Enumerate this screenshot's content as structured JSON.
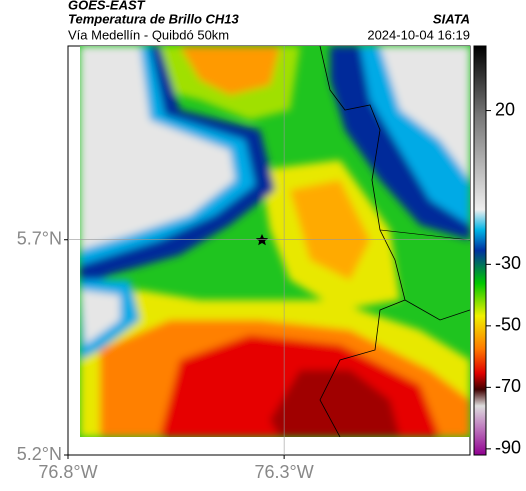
{
  "header": {
    "title": "GOES-EAST",
    "subtitle": "Temperatura de Brillo CH13",
    "source": "SIATA",
    "route": "Vía Medellín - Quibdó 50km",
    "timestamp": "2024-10-04 16:19"
  },
  "map": {
    "xlim": [
      -76.8,
      -75.87
    ],
    "ylim": [
      5.2,
      6.15
    ],
    "xticks": [
      {
        "value": -76.8,
        "label": "76.8°W"
      },
      {
        "value": -76.3,
        "label": "76.3°W"
      }
    ],
    "yticks": [
      {
        "value": 5.2,
        "label": "5.2°N"
      },
      {
        "value": 5.7,
        "label": "5.7°N"
      }
    ],
    "colorbar": {
      "lim": [
        -92,
        41
      ],
      "ticks": [
        20,
        -30,
        -50,
        -70,
        -90
      ]
    }
  }
}
